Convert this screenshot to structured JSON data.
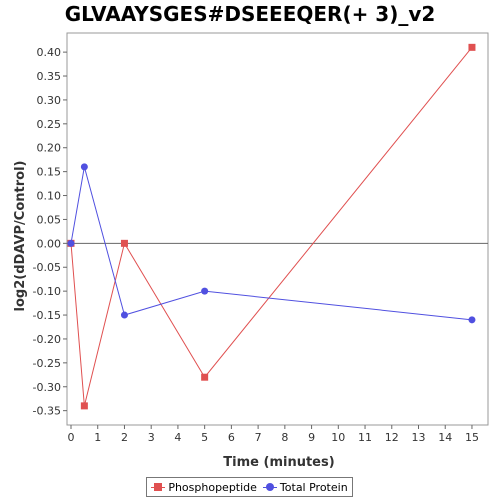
{
  "chart_data": {
    "type": "line",
    "title": "GLVAAYSGES#DSEEEQER(+ 3)_v2",
    "xlabel": "Time (minutes)",
    "ylabel": "log2(dDAVP/Control)",
    "xlim": [
      0,
      15.6
    ],
    "ylim": [
      -0.38,
      0.44
    ],
    "xticks": [
      0,
      1,
      2,
      3,
      4,
      5,
      6,
      7,
      8,
      9,
      10,
      11,
      12,
      13,
      14,
      15
    ],
    "yticks": [
      -0.35,
      -0.3,
      -0.25,
      -0.2,
      -0.15,
      -0.1,
      -0.05,
      0.0,
      0.05,
      0.1,
      0.15,
      0.2,
      0.25,
      0.3,
      0.35,
      0.4
    ],
    "zero_line": true,
    "grid": false,
    "legend_position": "bottom-center",
    "series": [
      {
        "name": "Phosphopeptide",
        "color": "#e05050",
        "marker": "square",
        "x": [
          0,
          0.5,
          2,
          5,
          15
        ],
        "y": [
          0.0,
          -0.34,
          0.0,
          -0.28,
          0.41
        ]
      },
      {
        "name": "Total Protein",
        "color": "#5050e0",
        "marker": "circle",
        "x": [
          0,
          0.5,
          2,
          5,
          15
        ],
        "y": [
          0.0,
          0.16,
          -0.15,
          -0.1,
          -0.16
        ]
      }
    ]
  }
}
